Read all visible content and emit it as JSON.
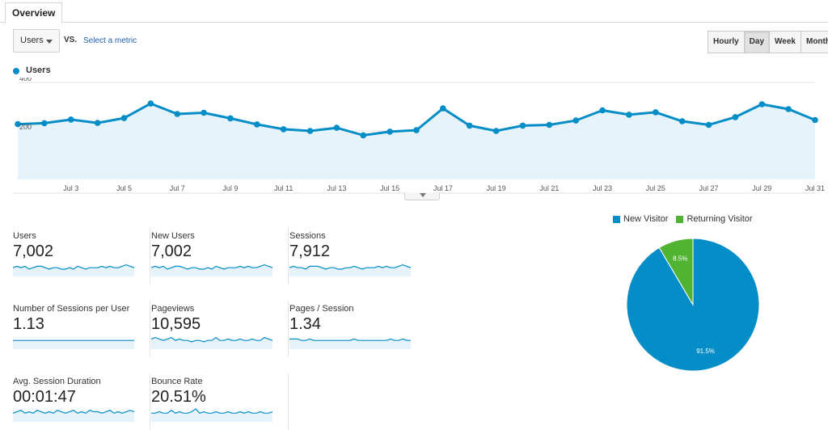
{
  "tabs": [
    {
      "label": "Overview"
    }
  ],
  "controls": {
    "metric": "Users",
    "vs": "VS.",
    "select_metric": "Select a metric",
    "ranges": [
      "Hourly",
      "Day",
      "Week",
      "Month"
    ],
    "active_range": "Day"
  },
  "colors": {
    "users_line": "#058dc7",
    "users_fill": "#e6f3fa",
    "new_visitor": "#058dc7",
    "returning_visitor": "#50b432"
  },
  "chart_data": [
    {
      "type": "line",
      "series": [
        {
          "name": "Users",
          "x": [
            "Jul 1",
            "Jul 2",
            "Jul 3",
            "Jul 4",
            "Jul 5",
            "Jul 6",
            "Jul 7",
            "Jul 8",
            "Jul 9",
            "Jul 10",
            "Jul 11",
            "Jul 12",
            "Jul 13",
            "Jul 14",
            "Jul 15",
            "Jul 16",
            "Jul 17",
            "Jul 18",
            "Jul 19",
            "Jul 20",
            "Jul 21",
            "Jul 22",
            "Jul 23",
            "Jul 24",
            "Jul 25",
            "Jul 26",
            "Jul 27",
            "Jul 28",
            "Jul 29",
            "Jul 30",
            "Jul 31"
          ],
          "values": [
            228,
            232,
            247,
            233,
            253,
            313,
            270,
            275,
            252,
            227,
            207,
            200,
            213,
            182,
            197,
            203,
            293,
            222,
            200,
            222,
            225,
            243,
            285,
            267,
            277,
            240,
            225,
            257,
            310,
            290,
            245
          ]
        }
      ],
      "xticks": [
        "Jul 3",
        "Jul 5",
        "Jul 7",
        "Jul 9",
        "Jul 11",
        "Jul 13",
        "Jul 15",
        "Jul 17",
        "Jul 19",
        "Jul 21",
        "Jul 23",
        "Jul 25",
        "Jul 27",
        "Jul 29",
        "Jul 31"
      ],
      "yticks": [
        200,
        400
      ],
      "ylim": [
        0,
        400
      ],
      "legend": "top-left"
    },
    {
      "type": "pie",
      "categories": [
        "New Visitor",
        "Returning Visitor"
      ],
      "values": [
        91.5,
        8.5
      ],
      "labels": [
        "91.5%",
        "8.5%"
      ],
      "legend": "top"
    }
  ],
  "scorecards": [
    {
      "label": "Users",
      "value": "7,002",
      "trend": [
        6,
        7,
        6,
        7,
        5,
        6,
        7,
        7,
        6,
        5,
        6,
        6,
        5,
        5,
        6,
        5,
        7,
        6,
        5,
        6,
        6,
        6,
        7,
        6,
        7,
        6,
        6,
        7,
        8,
        7,
        6
      ]
    },
    {
      "label": "New Users",
      "value": "7,002",
      "trend": [
        6,
        7,
        6,
        7,
        5,
        6,
        7,
        7,
        6,
        5,
        6,
        6,
        5,
        5,
        6,
        5,
        7,
        6,
        5,
        6,
        6,
        6,
        7,
        6,
        7,
        6,
        6,
        7,
        8,
        7,
        6
      ]
    },
    {
      "label": "Sessions",
      "value": "7,912",
      "trend": [
        6,
        7,
        6,
        6,
        5,
        7,
        7,
        7,
        6,
        5,
        6,
        6,
        5,
        5,
        6,
        6,
        7,
        6,
        5,
        6,
        6,
        6,
        7,
        6,
        7,
        6,
        6,
        7,
        8,
        7,
        6
      ]
    },
    {
      "label": "Number of Sessions per User",
      "value": "1.13",
      "trend": [
        6,
        6,
        6,
        6,
        6,
        6,
        6,
        6,
        6,
        6,
        6,
        6,
        6,
        6,
        6,
        6,
        6,
        6,
        6,
        6,
        6,
        6,
        6,
        6,
        6,
        6,
        6,
        6,
        6,
        6,
        6
      ]
    },
    {
      "label": "Pageviews",
      "value": "10,595",
      "trend": [
        7,
        8,
        7,
        6,
        7,
        8,
        6,
        7,
        6,
        6,
        5,
        6,
        6,
        5,
        6,
        6,
        8,
        6,
        6,
        7,
        6,
        6,
        7,
        6,
        6,
        7,
        6,
        6,
        8,
        7,
        6
      ]
    },
    {
      "label": "Pages / Session",
      "value": "1.34",
      "trend": [
        7,
        7,
        7,
        6,
        6,
        7,
        6,
        6,
        6,
        6,
        6,
        6,
        6,
        6,
        6,
        6,
        7,
        6,
        6,
        6,
        6,
        6,
        6,
        6,
        6,
        7,
        6,
        6,
        7,
        6,
        6
      ]
    },
    {
      "label": "Avg. Session Duration",
      "value": "00:01:47",
      "trend": [
        6,
        7,
        8,
        6,
        7,
        6,
        8,
        7,
        6,
        7,
        6,
        8,
        7,
        6,
        7,
        8,
        6,
        7,
        6,
        8,
        7,
        7,
        6,
        7,
        8,
        6,
        7,
        6,
        7,
        8,
        7
      ]
    },
    {
      "label": "Bounce Rate",
      "value": "20.51%",
      "trend": [
        6,
        6,
        7,
        6,
        6,
        8,
        6,
        7,
        6,
        6,
        7,
        9,
        6,
        7,
        6,
        6,
        7,
        6,
        6,
        7,
        6,
        6,
        7,
        6,
        7,
        6,
        6,
        7,
        6,
        6,
        7
      ]
    }
  ]
}
